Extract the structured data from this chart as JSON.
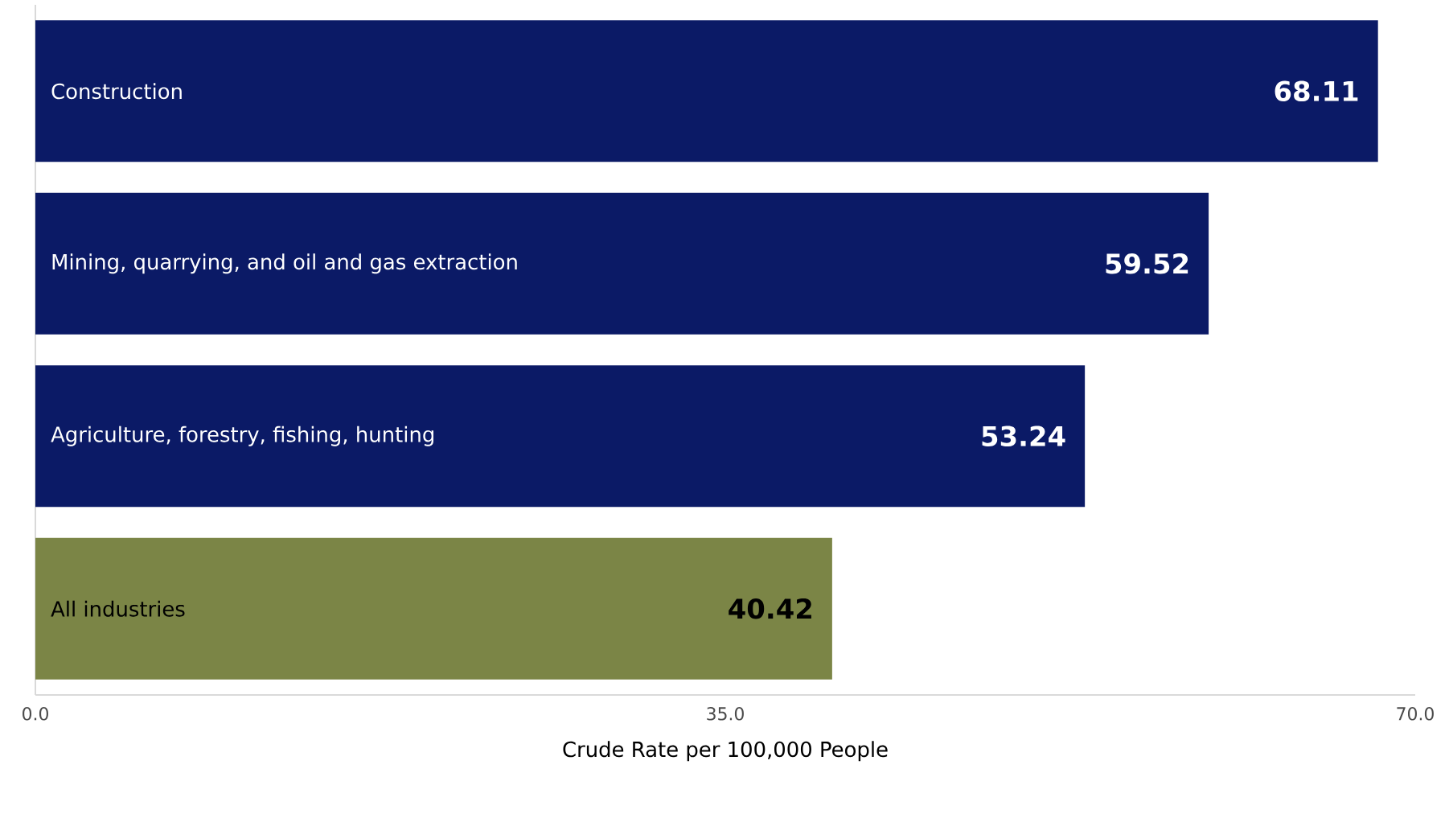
{
  "chart_data": {
    "type": "bar",
    "orientation": "horizontal",
    "xlabel": "Crude Rate per 100,000 People",
    "categories": [
      "Construction",
      "Mining, quarrying, and oil and gas extraction",
      "Agriculture, forestry, fishing, hunting",
      "All industries"
    ],
    "values": [
      68.11,
      59.52,
      53.24,
      40.42
    ],
    "colors": [
      "#0b1a66",
      "#0b1a66",
      "#0b1a66",
      "#7b8546"
    ],
    "xlim": [
      0,
      70
    ],
    "xticks": [
      {
        "value": 0,
        "label": "0.0"
      },
      {
        "value": 35,
        "label": "35.0"
      },
      {
        "value": 70,
        "label": "70.0"
      }
    ],
    "data_labels": true
  }
}
